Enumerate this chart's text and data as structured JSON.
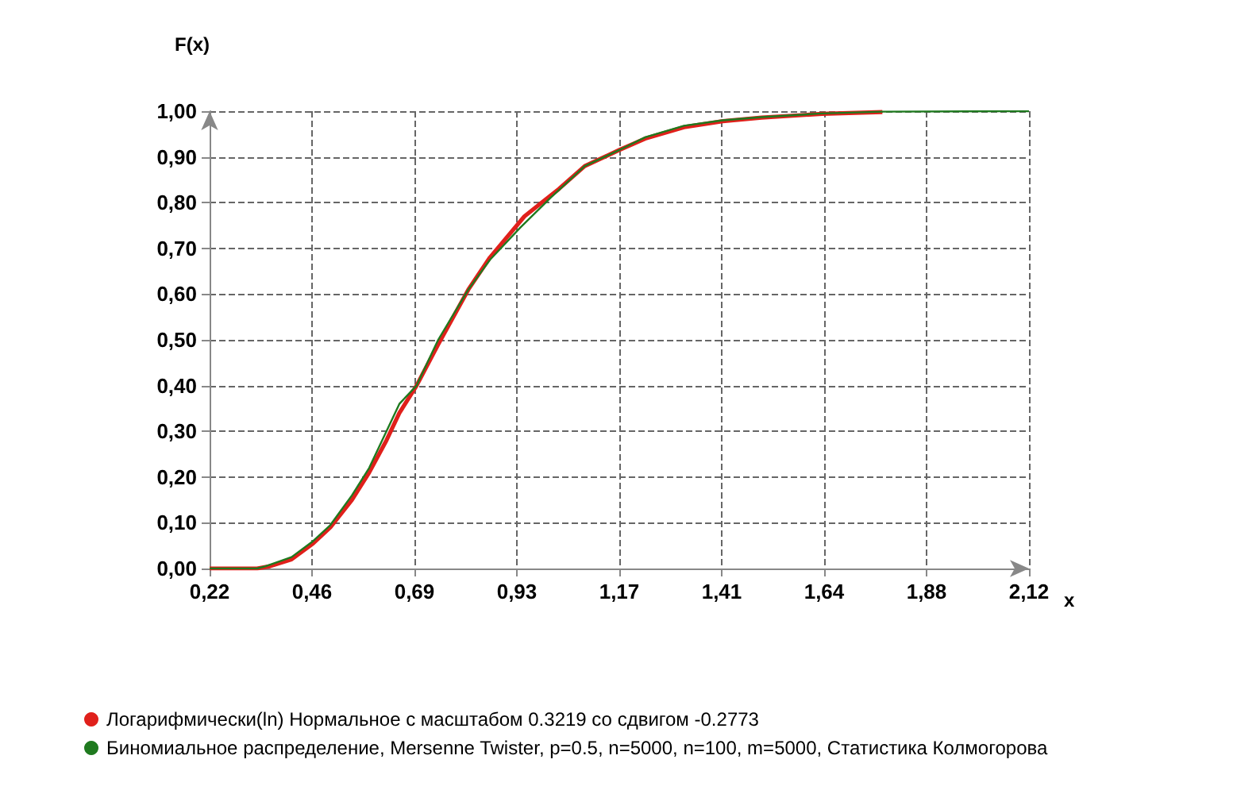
{
  "chart_data": {
    "type": "line",
    "xlabel": "x",
    "ylabel": "F(x)",
    "xlim": [
      0.22,
      2.12
    ],
    "ylim": [
      0,
      1
    ],
    "xticks": [
      {
        "value": 0.22,
        "label": "0,22"
      },
      {
        "value": 0.4575,
        "label": "0,46"
      },
      {
        "value": 0.695,
        "label": "0,69"
      },
      {
        "value": 0.9325,
        "label": "0,93"
      },
      {
        "value": 1.17,
        "label": "1,17"
      },
      {
        "value": 1.4075,
        "label": "1,41"
      },
      {
        "value": 1.645,
        "label": "1,64"
      },
      {
        "value": 1.8825,
        "label": "1,88"
      },
      {
        "value": 2.12,
        "label": "2,12"
      }
    ],
    "yticks": [
      {
        "value": 0,
        "label": "0,00"
      },
      {
        "value": 0.1,
        "label": "0,10"
      },
      {
        "value": 0.2,
        "label": "0,20"
      },
      {
        "value": 0.3,
        "label": "0,30"
      },
      {
        "value": 0.4,
        "label": "0,40"
      },
      {
        "value": 0.5,
        "label": "0,50"
      },
      {
        "value": 0.6,
        "label": "0,60"
      },
      {
        "value": 0.7,
        "label": "0,70"
      },
      {
        "value": 0.8,
        "label": "0,80"
      },
      {
        "value": 0.9,
        "label": "0,90"
      },
      {
        "value": 1,
        "label": "1,00"
      }
    ],
    "grid": true,
    "legend": "bottom",
    "marker": "none",
    "line_style": "solid",
    "series": [
      {
        "name": "Логарифмически(ln) Нормальное с масштабом 0.3219 со сдвигом -0.2773",
        "color": "#e0201b",
        "x": [
          0.22,
          0.33,
          0.36,
          0.41,
          0.46,
          0.5,
          0.55,
          0.59,
          0.63,
          0.66,
          0.7,
          0.75,
          0.82,
          0.87,
          0.95,
          1.03,
          1.09,
          1.17,
          1.23,
          1.32,
          1.41,
          1.5,
          1.64,
          1.78
        ],
        "values": [
          0,
          0,
          0.005,
          0.02,
          0.055,
          0.09,
          0.15,
          0.21,
          0.28,
          0.34,
          0.4,
          0.49,
          0.61,
          0.68,
          0.77,
          0.83,
          0.88,
          0.915,
          0.94,
          0.965,
          0.978,
          0.986,
          0.994,
          0.998
        ]
      },
      {
        "name": "Биномиальное распределение, Mersenne Twister, p=0.5, n=5000, n=100, m=5000, Статистика Колмогорова",
        "color": "#1f7a1f",
        "x": [
          0.22,
          0.33,
          0.35,
          0.41,
          0.46,
          0.5,
          0.55,
          0.59,
          0.63,
          0.66,
          0.7,
          0.75,
          0.82,
          0.87,
          0.94,
          1.01,
          1.09,
          1.17,
          1.23,
          1.32,
          1.41,
          1.5,
          1.64,
          1.78,
          2.12
        ],
        "values": [
          0,
          0,
          0.005,
          0.025,
          0.06,
          0.095,
          0.16,
          0.22,
          0.3,
          0.36,
          0.4,
          0.5,
          0.61,
          0.675,
          0.745,
          0.81,
          0.88,
          0.915,
          0.943,
          0.968,
          0.98,
          0.987,
          0.995,
          0.999,
          1
        ]
      }
    ]
  }
}
